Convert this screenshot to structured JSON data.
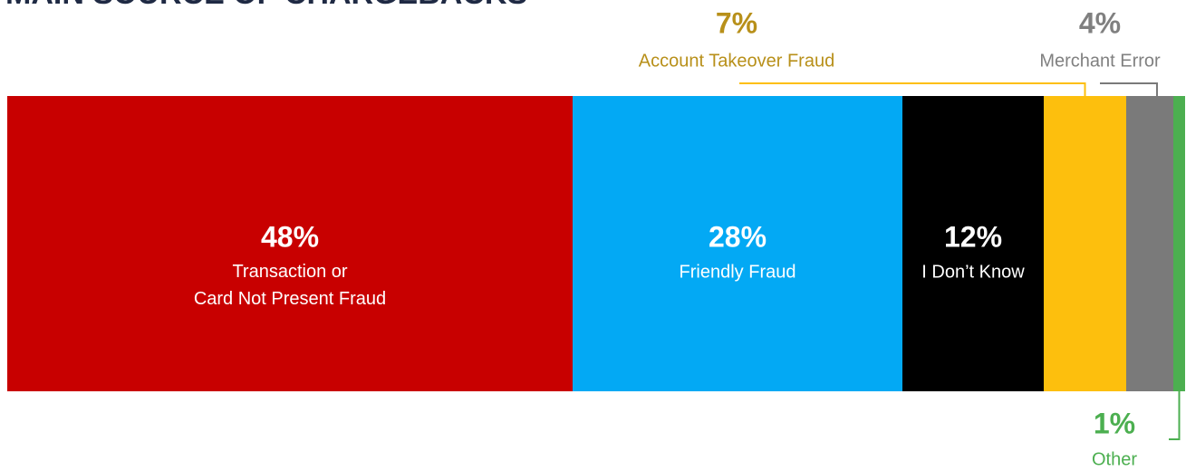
{
  "chart_data": {
    "type": "stacked-bar-100",
    "title": "MAIN SOURCE OF CHARGEBACKS",
    "categories": [
      "Transaction or\nCard Not Present Fraud",
      "Friendly Fraud",
      "I Don’t Know",
      "Account Takeover Fraud",
      "Merchant Error",
      "Other"
    ],
    "values": [
      48,
      28,
      12,
      7,
      4,
      1
    ],
    "value_labels": [
      "48%",
      "28%",
      "12%",
      "7%",
      "4%",
      "1%"
    ],
    "colors": [
      "#c80000",
      "#03a9f4",
      "#000000",
      "#fdbf0d",
      "#7a7a7a",
      "#4caf50"
    ],
    "label_colors": [
      "#ffffff",
      "#ffffff",
      "#ffffff",
      "#b8901a",
      "#808080",
      "#4caf50"
    ]
  }
}
